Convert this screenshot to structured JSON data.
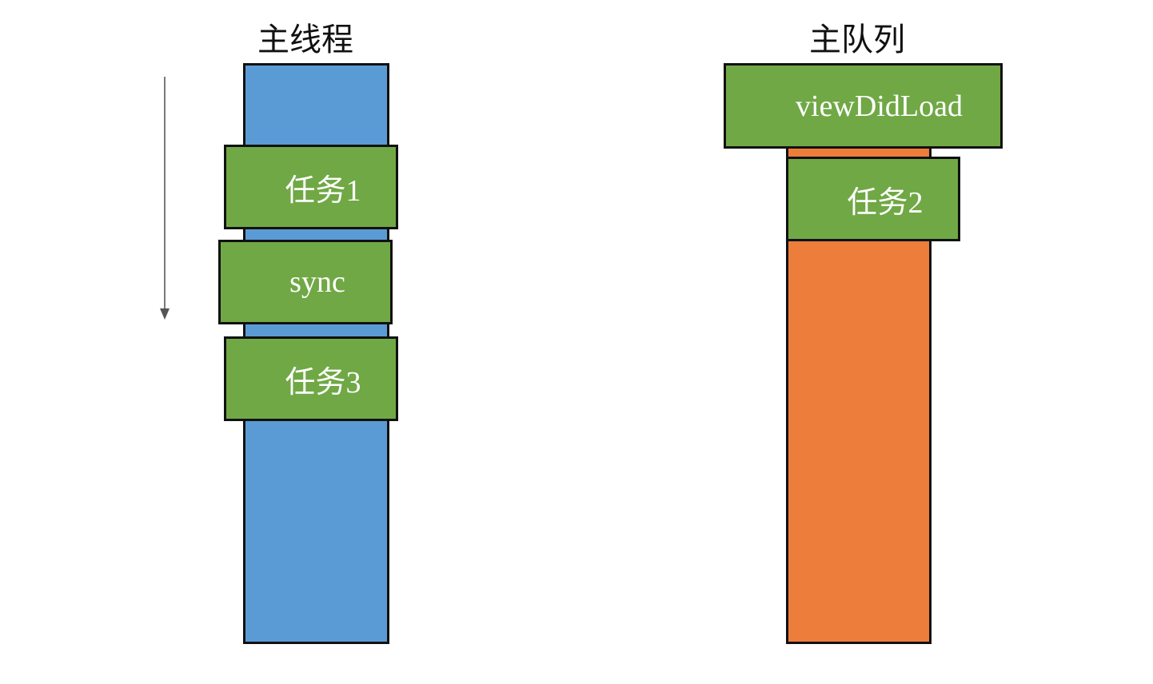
{
  "colors": {
    "main_thread": "#5b9bd5",
    "main_queue": "#ed7d3b",
    "task_block": "#70a845",
    "outline": "#111111",
    "label_text": "#ffffff"
  },
  "main_thread": {
    "title": "主线程",
    "blocks": [
      {
        "label": "任务1"
      },
      {
        "label": "sync"
      },
      {
        "label": "任务3"
      }
    ]
  },
  "main_queue": {
    "title": "主队列",
    "blocks": [
      {
        "label": "viewDidLoad"
      },
      {
        "label": "任务2"
      }
    ]
  },
  "flow_arrow": {
    "icon": "arrow-down-icon"
  }
}
